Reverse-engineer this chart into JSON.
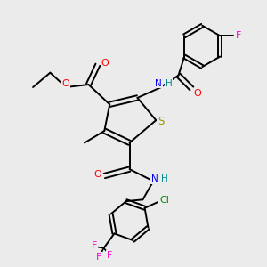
{
  "bg_color": "#ebebeb",
  "bond_color": "#000000",
  "colors": {
    "O": "#ff0000",
    "S": "#999900",
    "N": "#0000ff",
    "F": "#ff00cc",
    "Cl": "#008800",
    "H": "#008888",
    "C": "#000000"
  }
}
